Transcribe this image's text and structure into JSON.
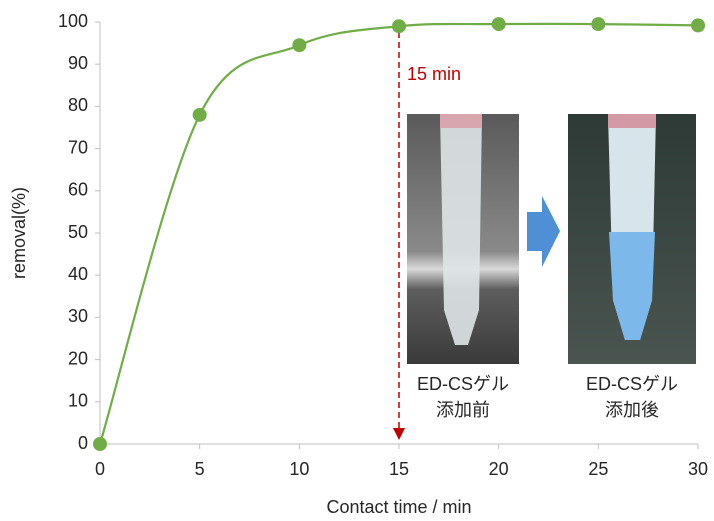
{
  "chart_data": {
    "type": "scatter",
    "x_label": "Contact time / min",
    "y_label": "removal(%)",
    "x": [
      0,
      5,
      10,
      15,
      20,
      25,
      30
    ],
    "series": [
      {
        "color": "#70ad47",
        "values": [
          0,
          78,
          94.5,
          99,
          99.5,
          99.5,
          99.2
        ]
      }
    ],
    "smooth_line": true,
    "xlim": [
      0,
      30
    ],
    "xticks": [
      0,
      5,
      10,
      15,
      20,
      25,
      30
    ],
    "ylim": [
      0,
      100
    ],
    "yticks": [
      0,
      10,
      20,
      30,
      40,
      50,
      60,
      70,
      80,
      90,
      100
    ],
    "annotations": [
      {
        "text": "15 min",
        "x": 15,
        "color": "#c00000"
      }
    ],
    "photo_labels": [
      [
        "ED-CSゲル",
        "添加前"
      ],
      [
        "ED-CSゲル",
        "添加後"
      ]
    ]
  }
}
